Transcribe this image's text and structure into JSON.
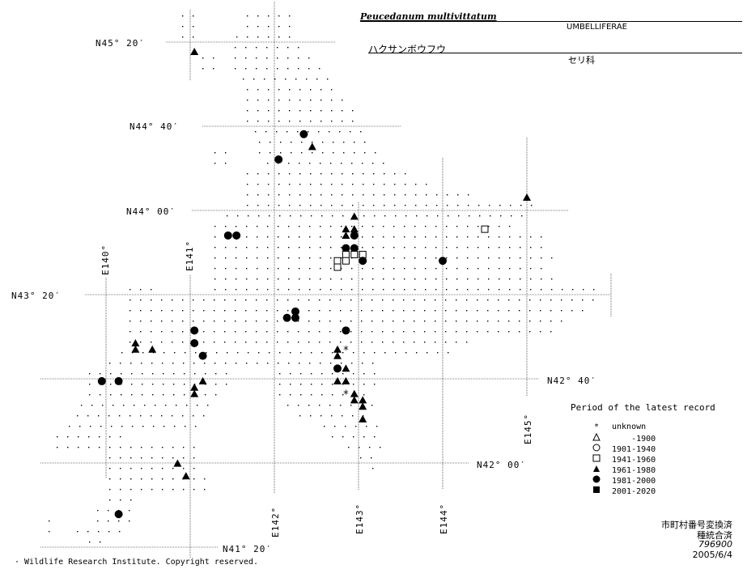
{
  "header": {
    "scientific_name": "Peucedanum multivittatum",
    "family_en": "UMBELLIFERAE",
    "japanese_name": "ハクサンボウフウ",
    "family_jp": "セリ科"
  },
  "grid_labels": {
    "lat_45_20": "N45° 20′",
    "lat_44_40": "N44° 40′",
    "lat_44_00": "N44° 00′",
    "lat_43_20": "N43° 20′",
    "lat_42_40": "N42° 40′",
    "lat_42_00": "N42° 00′",
    "lat_41_20": "N41° 20′",
    "lon_140": "E140°",
    "lon_141": "E141°",
    "lon_142": "E142°",
    "lon_143": "E143°",
    "lon_144": "E144°",
    "lon_145": "E145°"
  },
  "legend": {
    "title": "Period of the latest record",
    "items": [
      {
        "symbol": "asterisk",
        "label": "unknown"
      },
      {
        "symbol": "triangle-open",
        "label": "    -1900"
      },
      {
        "symbol": "circle-open",
        "label": "1901-1940"
      },
      {
        "symbol": "square-open",
        "label": "1941-1960"
      },
      {
        "symbol": "triangle-filled",
        "label": "1961-1980"
      },
      {
        "symbol": "circle-filled",
        "label": "1981-2000"
      },
      {
        "symbol": "square-filled",
        "label": "2001-2020"
      }
    ]
  },
  "meta": {
    "line1": "市町村番号変換済",
    "line2": "種統合済",
    "line3": "796900",
    "line4": "2005/6/4"
  },
  "copyright": "· Wildlife Research Institute. Copyright reserved.",
  "records": [
    {
      "period": "1961-1980",
      "lon": 141.05,
      "lat": 45.25
    },
    {
      "period": "1981-2000",
      "lon": 142.35,
      "lat": 44.6
    },
    {
      "period": "1961-1980",
      "lon": 142.45,
      "lat": 44.5
    },
    {
      "period": "1981-2000",
      "lon": 142.05,
      "lat": 44.4
    },
    {
      "period": "1961-1980",
      "lon": 145.0,
      "lat": 44.1
    },
    {
      "period": "1961-1980",
      "lon": 142.95,
      "lat": 43.95
    },
    {
      "period": "1961-1980",
      "lon": 142.85,
      "lat": 43.85
    },
    {
      "period": "1961-1980",
      "lon": 142.95,
      "lat": 43.85
    },
    {
      "period": "1941-1960",
      "lon": 144.5,
      "lat": 43.85
    },
    {
      "period": "1981-2000",
      "lon": 141.45,
      "lat": 43.8
    },
    {
      "period": "1981-2000",
      "lon": 141.55,
      "lat": 43.8
    },
    {
      "period": "1961-1980",
      "lon": 142.85,
      "lat": 43.8
    },
    {
      "period": "1981-2000",
      "lon": 142.95,
      "lat": 43.8
    },
    {
      "period": "1981-2000",
      "lon": 142.85,
      "lat": 43.7
    },
    {
      "period": "1981-2000",
      "lon": 142.95,
      "lat": 43.7
    },
    {
      "period": "1941-1960",
      "lon": 142.85,
      "lat": 43.65
    },
    {
      "period": "1941-1960",
      "lon": 142.95,
      "lat": 43.65
    },
    {
      "period": "1941-1960",
      "lon": 143.05,
      "lat": 43.65
    },
    {
      "period": "1941-1960",
      "lon": 142.75,
      "lat": 43.6
    },
    {
      "period": "1941-1960",
      "lon": 142.85,
      "lat": 43.6
    },
    {
      "period": "1981-2000",
      "lon": 143.05,
      "lat": 43.6
    },
    {
      "period": "1981-2000",
      "lon": 144.0,
      "lat": 43.6
    },
    {
      "period": "1941-1960",
      "lon": 142.75,
      "lat": 43.55
    },
    {
      "period": "1981-2000",
      "lon": 142.25,
      "lat": 43.2
    },
    {
      "period": "1981-2000",
      "lon": 142.15,
      "lat": 43.15
    },
    {
      "period": "1981-2000",
      "lon": 142.25,
      "lat": 43.15
    },
    {
      "period": "1981-2000",
      "lon": 141.05,
      "lat": 43.05
    },
    {
      "period": "1981-2000",
      "lon": 142.85,
      "lat": 43.05
    },
    {
      "period": "1961-1980",
      "lon": 140.35,
      "lat": 42.95
    },
    {
      "period": "1981-2000",
      "lon": 141.05,
      "lat": 42.95
    },
    {
      "period": "1961-1980",
      "lon": 140.35,
      "lat": 42.9
    },
    {
      "period": "1961-1980",
      "lon": 140.55,
      "lat": 42.9
    },
    {
      "period": "1961-1980",
      "lon": 142.75,
      "lat": 42.9
    },
    {
      "period": "unknown",
      "lon": 142.85,
      "lat": 42.9
    },
    {
      "period": "1981-2000",
      "lon": 141.15,
      "lat": 42.85
    },
    {
      "period": "1961-1980",
      "lon": 142.75,
      "lat": 42.85
    },
    {
      "period": "1981-2000",
      "lon": 142.75,
      "lat": 42.75
    },
    {
      "period": "1961-1980",
      "lon": 142.85,
      "lat": 42.75
    },
    {
      "period": "1981-2000",
      "lon": 139.95,
      "lat": 42.65
    },
    {
      "period": "1981-2000",
      "lon": 140.15,
      "lat": 42.65
    },
    {
      "period": "1961-1980",
      "lon": 141.15,
      "lat": 42.65
    },
    {
      "period": "1961-1980",
      "lon": 142.75,
      "lat": 42.65
    },
    {
      "period": "1961-1980",
      "lon": 142.85,
      "lat": 42.65
    },
    {
      "period": "1961-1980",
      "lon": 141.05,
      "lat": 42.6
    },
    {
      "period": "1961-1980",
      "lon": 141.05,
      "lat": 42.55
    },
    {
      "period": "unknown",
      "lon": 142.85,
      "lat": 42.55
    },
    {
      "period": "1961-1980",
      "lon": 142.95,
      "lat": 42.55
    },
    {
      "period": "1961-1980",
      "lon": 142.95,
      "lat": 42.5
    },
    {
      "period": "1961-1980",
      "lon": 143.05,
      "lat": 42.5
    },
    {
      "period": "1961-1980",
      "lon": 143.05,
      "lat": 42.45
    },
    {
      "period": "1961-1980",
      "lon": 143.05,
      "lat": 42.35
    },
    {
      "period": "1961-1980",
      "lon": 140.85,
      "lat": 42.0
    },
    {
      "period": "1961-1980",
      "lon": 140.95,
      "lat": 41.9
    },
    {
      "period": "1981-2000",
      "lon": 140.15,
      "lat": 41.6
    }
  ]
}
